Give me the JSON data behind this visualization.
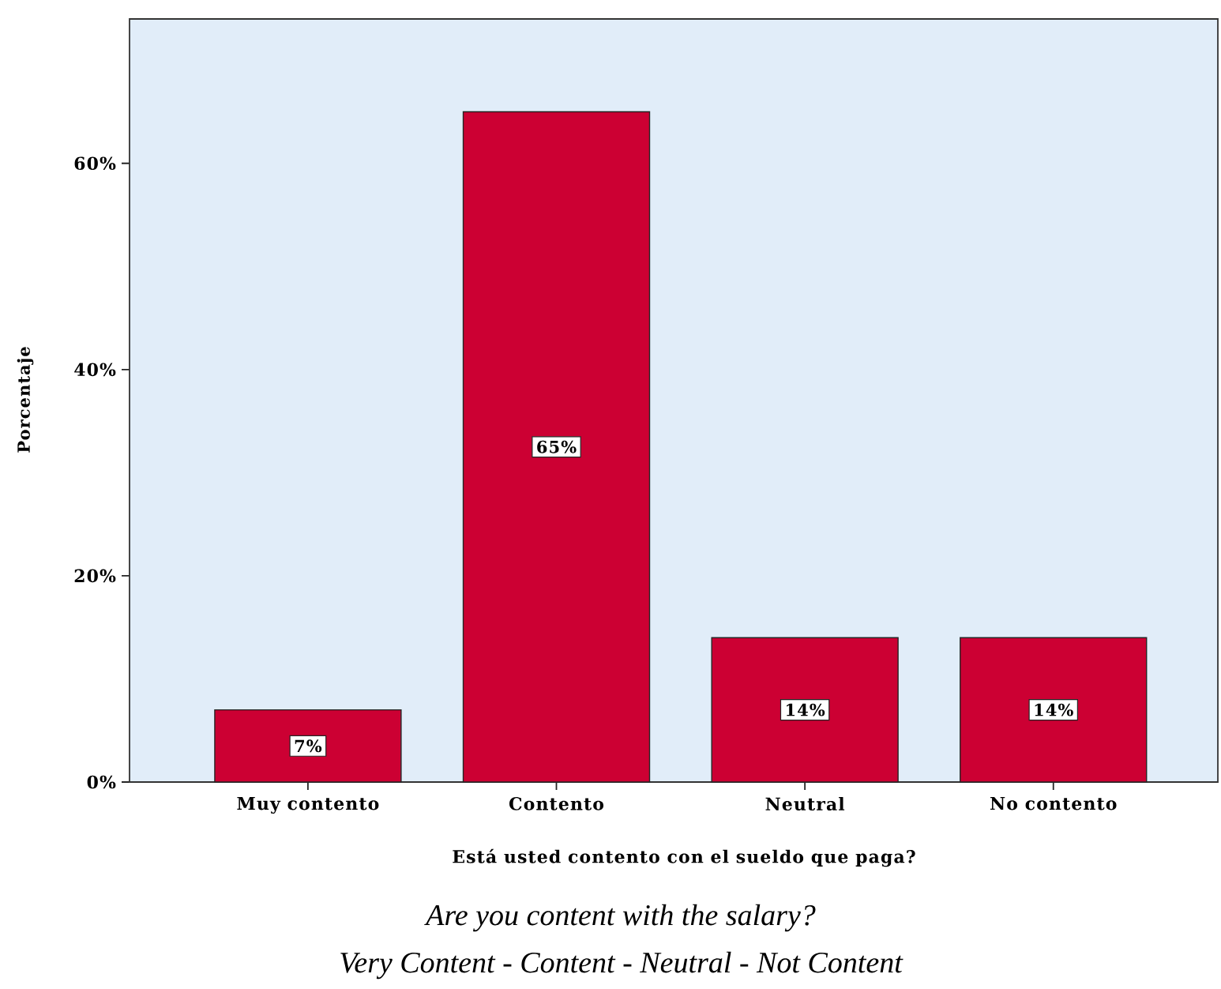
{
  "chart_data": {
    "type": "bar",
    "xlabel": "Está usted contento con el sueldo que paga?",
    "ylabel": "Porcentaje",
    "categories": [
      "Muy contento",
      "Contento",
      "Neutral",
      "No contento"
    ],
    "values": [
      7,
      65,
      14,
      14
    ],
    "value_labels": [
      "7%",
      "65%",
      "14%",
      "14%"
    ],
    "color": "#cc0033",
    "ylim": [
      0,
      74
    ],
    "yticks": [
      {
        "value": 0,
        "label": "0%"
      },
      {
        "value": 20,
        "label": "20%"
      },
      {
        "value": 40,
        "label": "40%"
      },
      {
        "value": 60,
        "label": "60%"
      }
    ],
    "grid": false,
    "annotations": [
      "Are you content with the salary?",
      "Very Content - Content  - Neutral - Not Content"
    ]
  }
}
